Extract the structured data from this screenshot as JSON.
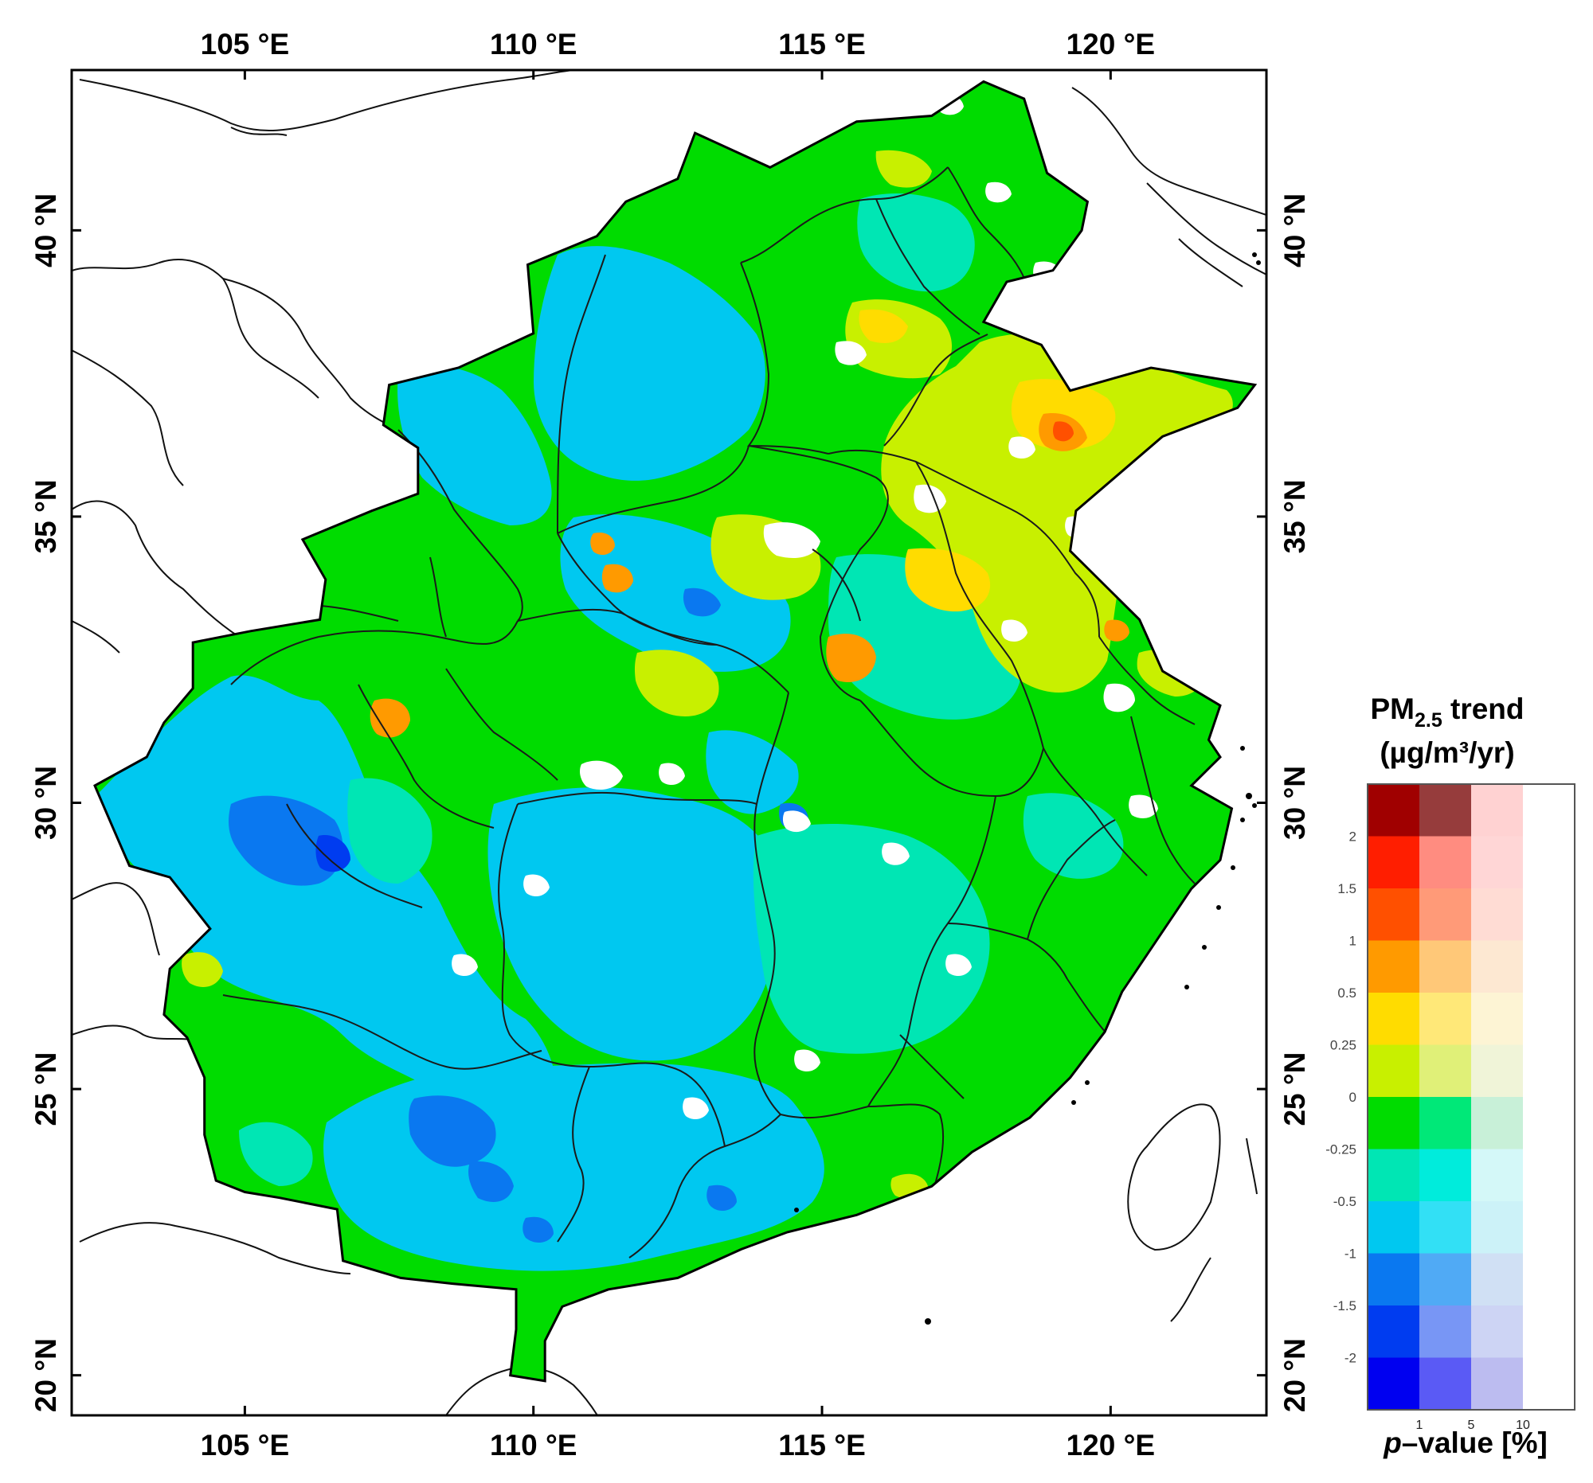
{
  "map": {
    "lon_range": [
      102,
      122.7
    ],
    "lat_range": [
      19.3,
      42.8
    ],
    "lon_ticks": [
      {
        "value": 105,
        "label": "105 °E"
      },
      {
        "value": 110,
        "label": "110 °E"
      },
      {
        "value": 115,
        "label": "115 °E"
      },
      {
        "value": 120,
        "label": "120 °E"
      }
    ],
    "lat_ticks": [
      {
        "value": 20,
        "label": "20 °N"
      },
      {
        "value": 25,
        "label": "25 °N"
      },
      {
        "value": 30,
        "label": "30 °N"
      },
      {
        "value": 35,
        "label": "35 °N"
      },
      {
        "value": 40,
        "label": "40 °N"
      }
    ],
    "domain_outline": [
      [
        112.8,
        41.7
      ],
      [
        114.1,
        41.1
      ],
      [
        115.6,
        41.9
      ],
      [
        116.9,
        42.0
      ],
      [
        117.8,
        42.6
      ],
      [
        118.5,
        42.3
      ],
      [
        118.9,
        41.0
      ],
      [
        119.6,
        40.5
      ],
      [
        119.5,
        40.0
      ],
      [
        119.0,
        39.3
      ],
      [
        118.2,
        39.1
      ],
      [
        117.8,
        38.4
      ],
      [
        118.8,
        38.0
      ],
      [
        119.3,
        37.2
      ],
      [
        120.7,
        37.6
      ],
      [
        122.5,
        37.3
      ],
      [
        122.2,
        36.9
      ],
      [
        120.9,
        36.4
      ],
      [
        119.4,
        35.1
      ],
      [
        119.3,
        34.4
      ],
      [
        120.5,
        33.2
      ],
      [
        120.9,
        32.3
      ],
      [
        121.9,
        31.7
      ],
      [
        121.7,
        31.1
      ],
      [
        121.9,
        30.8
      ],
      [
        121.4,
        30.3
      ],
      [
        122.1,
        29.9
      ],
      [
        121.9,
        29.0
      ],
      [
        121.4,
        28.5
      ],
      [
        120.8,
        27.6
      ],
      [
        120.2,
        26.7
      ],
      [
        119.9,
        26.0
      ],
      [
        119.3,
        25.2
      ],
      [
        118.6,
        24.5
      ],
      [
        117.6,
        23.9
      ],
      [
        116.9,
        23.3
      ],
      [
        115.6,
        22.8
      ],
      [
        114.4,
        22.5
      ],
      [
        113.6,
        22.2
      ],
      [
        112.5,
        21.7
      ],
      [
        111.3,
        21.5
      ],
      [
        110.5,
        21.2
      ],
      [
        110.2,
        20.6
      ],
      [
        110.2,
        19.9
      ],
      [
        109.6,
        20.0
      ],
      [
        109.7,
        20.8
      ],
      [
        109.7,
        21.5
      ],
      [
        108.6,
        21.6
      ],
      [
        107.7,
        21.7
      ],
      [
        106.7,
        22.0
      ],
      [
        106.6,
        22.9
      ],
      [
        105.6,
        23.1
      ],
      [
        105.0,
        23.2
      ],
      [
        104.5,
        23.4
      ],
      [
        104.3,
        24.2
      ],
      [
        104.3,
        25.2
      ],
      [
        104.0,
        25.9
      ],
      [
        103.6,
        26.3
      ],
      [
        103.7,
        27.1
      ],
      [
        104.4,
        27.8
      ],
      [
        103.7,
        28.7
      ],
      [
        103.0,
        28.9
      ],
      [
        102.7,
        29.6
      ],
      [
        102.4,
        30.3
      ],
      [
        103.3,
        30.8
      ],
      [
        103.6,
        31.4
      ],
      [
        104.1,
        32.0
      ],
      [
        104.1,
        32.8
      ],
      [
        105.1,
        33.0
      ],
      [
        106.3,
        33.2
      ],
      [
        106.4,
        33.9
      ],
      [
        106.0,
        34.6
      ],
      [
        107.2,
        35.1
      ],
      [
        108.0,
        35.4
      ],
      [
        108.0,
        36.2
      ],
      [
        107.4,
        36.6
      ],
      [
        107.5,
        37.3
      ],
      [
        108.7,
        37.6
      ],
      [
        110.0,
        38.2
      ],
      [
        109.9,
        39.4
      ],
      [
        111.1,
        39.9
      ],
      [
        111.6,
        40.5
      ],
      [
        112.5,
        40.9
      ],
      [
        112.8,
        41.7
      ]
    ]
  },
  "legend": {
    "title_main": "PM",
    "title_sub": "2.5",
    "title_rest": " trend",
    "unit": "(µg/m³/yr)",
    "trend_ticks": [
      "2",
      "1.5",
      "1",
      "0.5",
      "0.25",
      "0",
      "-0.25",
      "-0.5",
      "-1",
      "-1.5",
      "-2"
    ],
    "pvalue_ticks": [
      "1",
      "5",
      "10"
    ],
    "xlabel_italic": "p",
    "xlabel_rest": "–value [%]",
    "colors": [
      [
        "#a00000",
        "#963c3c",
        "#ffd2d2",
        "#ffffff"
      ],
      [
        "#ff1e00",
        "#ff8c80",
        "#ffd6d6",
        "#ffffff"
      ],
      [
        "#ff5000",
        "#ff9a78",
        "#ffdcd4",
        "#ffffff"
      ],
      [
        "#ff9a00",
        "#ffc878",
        "#fde8d2",
        "#ffffff"
      ],
      [
        "#ffdc00",
        "#ffe878",
        "#fdf4d4",
        "#ffffff"
      ],
      [
        "#c8f000",
        "#e0f078",
        "#f0f4d8",
        "#ffffff"
      ],
      [
        "#00dc00",
        "#00e878",
        "#c8f0d8",
        "#ffffff"
      ],
      [
        "#00e6b4",
        "#00ecdc",
        "#d4f8f8",
        "#ffffff"
      ],
      [
        "#00c8f0",
        "#32e0f5",
        "#ccf2f8",
        "#ffffff"
      ],
      [
        "#0a78f0",
        "#50aaf5",
        "#d0e0f4",
        "#ffffff"
      ],
      [
        "#003cf0",
        "#7896f5",
        "#cdd4f4",
        "#ffffff"
      ],
      [
        "#0000f0",
        "#5a5af5",
        "#bcbcf0",
        "#ffffff"
      ]
    ]
  }
}
